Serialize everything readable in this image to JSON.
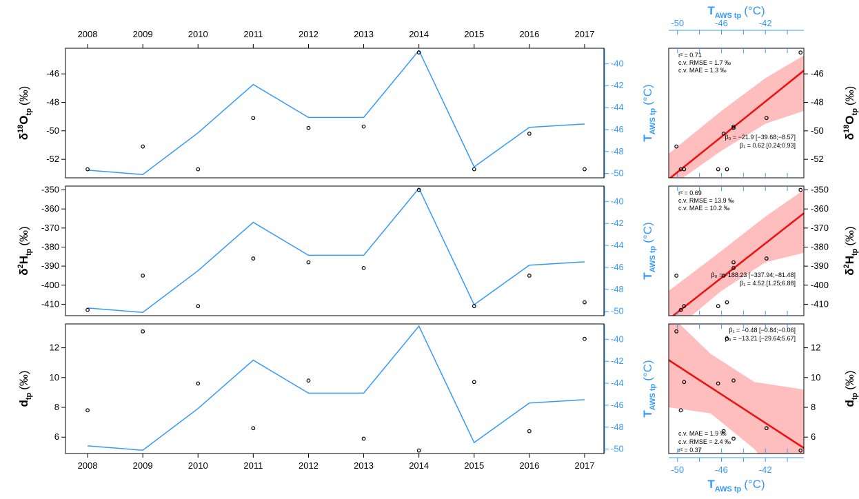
{
  "years": [
    "2008",
    "2009",
    "2010",
    "2011",
    "2012",
    "2013",
    "2014",
    "2015",
    "2016",
    "2017"
  ],
  "temp_axis_ticks": [
    "-40",
    "-42",
    "-44",
    "-46",
    "-48",
    "-50"
  ],
  "scatter_top_ticks": [
    "-50",
    "-46",
    "-42"
  ],
  "scatter_bottom_ticks": [
    "-50",
    "-46",
    "-42"
  ],
  "labels": {
    "t_axis_main": "T",
    "t_axis_sub": "AWS tp",
    "t_axis_unit": "(°C)",
    "d18o_delta": "δ",
    "d18o_sup": "18",
    "d18o_main": "O",
    "d18o_sub": "tp",
    "d18o_unit": "(‰)",
    "d2h_delta": "δ",
    "d2h_sup": "2",
    "d2h_main": "H",
    "d2h_sub": "tp",
    "d2h_unit": "(‰)",
    "d_main": "d",
    "d_sub": "tp",
    "d_unit": "(‰)"
  },
  "chart_data": [
    {
      "type": "line",
      "panel": "d18O",
      "x": [
        2008,
        2009,
        2010,
        2011,
        2012,
        2013,
        2014,
        2015,
        2016,
        2017
      ],
      "series": [
        {
          "kind": "line",
          "axis": "right",
          "color": "#3399ff",
          "values": [
            -49.7,
            -50.1,
            -46.3,
            -41.9,
            -44.9,
            -44.9,
            -38.8,
            -49.4,
            -45.8,
            -45.5
          ]
        },
        {
          "kind": "points",
          "axis": "left",
          "color": "#000000",
          "values": [
            -52.7,
            -51.1,
            -52.7,
            -49.1,
            -49.8,
            -49.7,
            -44.5,
            -52.7,
            -50.2,
            -52.7
          ]
        }
      ],
      "left_ticks": [
        "-46",
        "-48",
        "-50",
        "-52"
      ],
      "left_ylim": [
        -53.3,
        -44.2
      ],
      "right_ylim": [
        -50.4,
        -38.6
      ]
    },
    {
      "type": "line",
      "panel": "d2H",
      "x": [
        2008,
        2009,
        2010,
        2011,
        2012,
        2013,
        2014,
        2015,
        2016,
        2017
      ],
      "series": [
        {
          "kind": "line",
          "axis": "right",
          "color": "#3399ff",
          "values": [
            -49.7,
            -50.1,
            -46.3,
            -41.9,
            -44.9,
            -44.9,
            -38.8,
            -49.4,
            -45.8,
            -45.5
          ]
        },
        {
          "kind": "points",
          "axis": "left",
          "color": "#000000",
          "values": [
            -413,
            -395,
            -411,
            -386,
            -388,
            -391,
            -350,
            -411,
            -395,
            -409
          ]
        }
      ],
      "left_ticks": [
        "-350",
        "-360",
        "-370",
        "-380",
        "-390",
        "-400",
        "-410"
      ],
      "left_ylim": [
        -416,
        -348
      ],
      "right_ylim": [
        -50.4,
        -38.6
      ]
    },
    {
      "type": "line",
      "panel": "d",
      "x": [
        2008,
        2009,
        2010,
        2011,
        2012,
        2013,
        2014,
        2015,
        2016,
        2017
      ],
      "series": [
        {
          "kind": "line",
          "axis": "right",
          "color": "#3399ff",
          "values": [
            -49.7,
            -50.1,
            -46.3,
            -41.9,
            -44.9,
            -44.9,
            -38.8,
            -49.4,
            -45.8,
            -45.5
          ]
        },
        {
          "kind": "points",
          "axis": "left",
          "color": "#000000",
          "values": [
            7.8,
            13.1,
            9.6,
            6.6,
            9.8,
            5.9,
            5.1,
            9.7,
            6.4,
            12.6
          ]
        }
      ],
      "left_ticks": [
        "12",
        "10",
        "8",
        "6"
      ],
      "left_ylim": [
        4.9,
        13.6
      ],
      "right_ylim": [
        -50.4,
        -38.6
      ]
    },
    {
      "type": "scatter",
      "panel": "d18O vs T",
      "xlim": [
        -50.8,
        -38.5
      ],
      "ylim": [
        -53.3,
        -44.2
      ],
      "right_ticks": [
        "-46",
        "-48",
        "-50",
        "-52"
      ],
      "points_x": [
        -49.7,
        -50.1,
        -46.3,
        -41.9,
        -44.9,
        -44.9,
        -38.8,
        -49.4,
        -45.8,
        -45.5
      ],
      "points_y": [
        -52.7,
        -51.1,
        -52.7,
        -49.1,
        -49.8,
        -49.7,
        -44.5,
        -52.7,
        -50.2,
        -52.7
      ],
      "fit": {
        "intercept": -21.9,
        "slope": 0.62
      },
      "band_upper": [
        [
          -50.8,
          -51.6
        ],
        [
          -46,
          -48.6
        ],
        [
          -42,
          -46.3
        ],
        [
          -38.5,
          -44.7
        ]
      ],
      "band_lower": [
        [
          -50.8,
          -54
        ],
        [
          -46,
          -51.4
        ],
        [
          -42,
          -49.5
        ],
        [
          -38.5,
          -48.6
        ]
      ],
      "stats_top": [
        "r² = 0.71",
        "c.v. RMSE = 1.7 ‰",
        "c.v. MAE = 1.3 ‰"
      ],
      "stats_bottom": [
        "β₀ = −21.9 [−39.68;−8.57]",
        "β₁ = 0.62 [0.24;0.93]"
      ]
    },
    {
      "type": "scatter",
      "panel": "d2H vs T",
      "xlim": [
        -50.8,
        -38.5
      ],
      "ylim": [
        -416,
        -348
      ],
      "right_ticks": [
        "-350",
        "-360",
        "-370",
        "-380",
        "-390",
        "-400",
        "-410"
      ],
      "points_x": [
        -49.7,
        -50.1,
        -46.3,
        -41.9,
        -44.9,
        -44.9,
        -38.8,
        -49.4,
        -45.8,
        -45.5
      ],
      "points_y": [
        -413,
        -395,
        -411,
        -386,
        -388,
        -391,
        -350,
        -411,
        -395,
        -409
      ],
      "fit": {
        "intercept": -188.23,
        "slope": 4.52
      },
      "band_upper": [
        [
          -50.8,
          -403
        ],
        [
          -46,
          -382
        ],
        [
          -42,
          -364
        ],
        [
          -38.5,
          -350
        ]
      ],
      "band_lower": [
        [
          -50.8,
          -426
        ],
        [
          -46,
          -403
        ],
        [
          -42,
          -388
        ],
        [
          -38.5,
          -383
        ]
      ],
      "stats_top": [
        "r² = 0.69",
        "c.v. RMSE = 13.9 ‰",
        "c.v. MAE = 10.2 ‰"
      ],
      "stats_bottom": [
        "β₀ = −188.23 [−337.94;−81.48]",
        "β₁ = 4.52 [1.25;6.88]"
      ]
    },
    {
      "type": "scatter",
      "panel": "d vs T",
      "xlim": [
        -50.8,
        -38.5
      ],
      "ylim": [
        4.9,
        13.6
      ],
      "right_ticks": [
        "12",
        "10",
        "8",
        "6"
      ],
      "points_x": [
        -49.7,
        -50.1,
        -46.3,
        -41.9,
        -44.9,
        -44.9,
        -38.8,
        -49.4,
        -45.8,
        -45.5
      ],
      "points_y": [
        7.8,
        13.1,
        9.6,
        6.6,
        9.8,
        5.9,
        5.1,
        9.7,
        6.4,
        12.6
      ],
      "fit": {
        "intercept": -13.21,
        "slope": -0.48
      },
      "band_upper": [
        [
          -50.8,
          14.3
        ],
        [
          -47,
          11.6
        ],
        [
          -43,
          9.7
        ],
        [
          -38.5,
          9.2
        ]
      ],
      "band_lower": [
        [
          -50.8,
          8
        ],
        [
          -47,
          7.6
        ],
        [
          -43,
          5.2
        ],
        [
          -38.5,
          1
        ]
      ],
      "stats_top": [
        "β₁ = −0.48 [−0.84;−0.06]",
        "β₀ = −13.21 [−29.64;5.67]"
      ],
      "stats_bottom": [
        "c.v. MAE = 1.9 ‰",
        "c.v. RMSE = 2.4 ‰",
        "r² = 0.37"
      ]
    }
  ]
}
